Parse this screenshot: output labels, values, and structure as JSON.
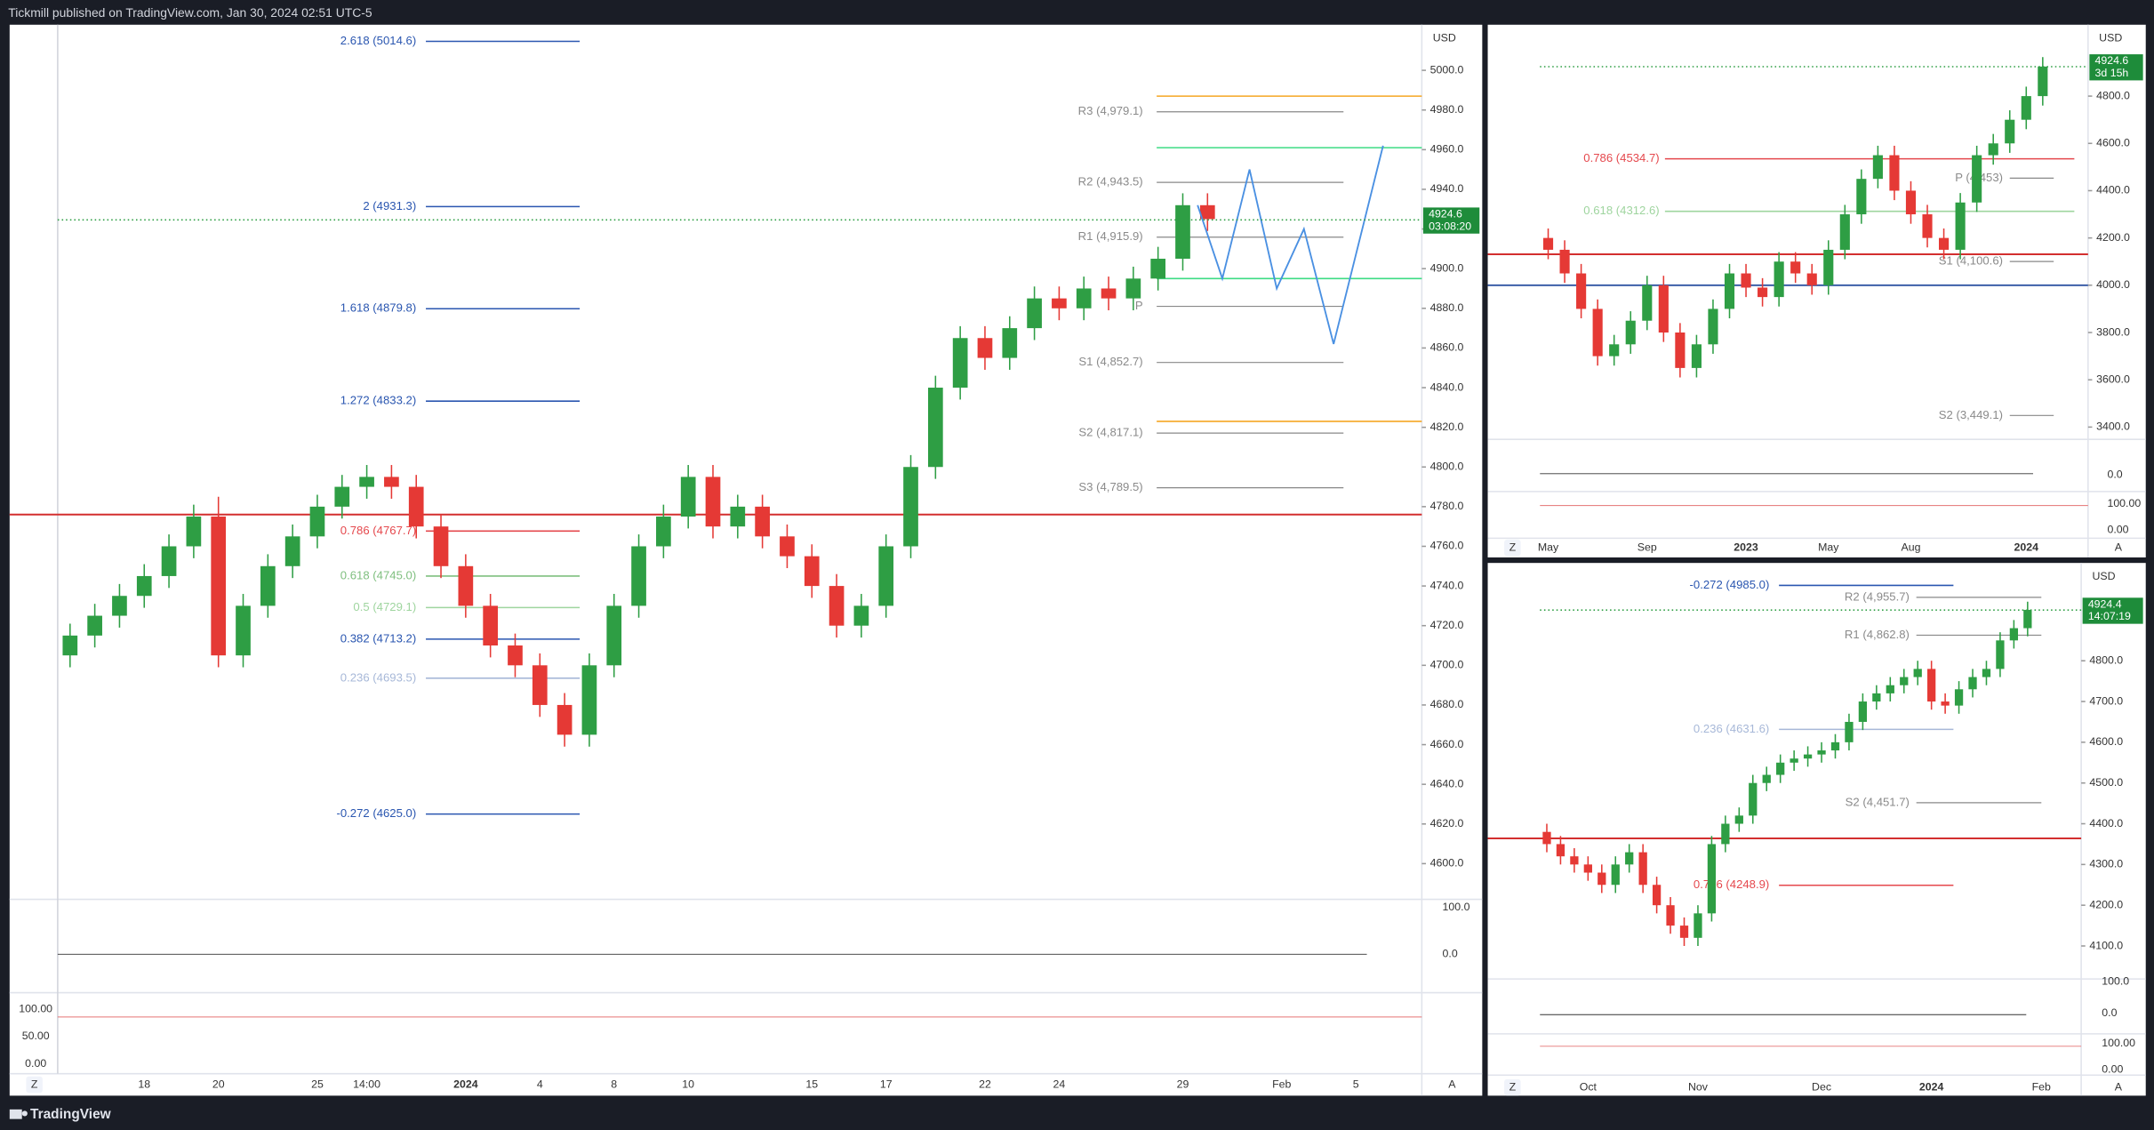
{
  "header": {
    "title": "Tickmill published on TradingView.com, Jan 30, 2024 02:51 UTC-5"
  },
  "footer": {
    "brand": "TradingView"
  },
  "buttons": {
    "left": "Z",
    "right": "A"
  },
  "chart_data": [
    {
      "type": "candlestick",
      "currency": "USD",
      "last_price": 4924.6,
      "countdown": "03:08:20",
      "up_color": "#2e9e44",
      "down_color": "#e53935",
      "categories": [
        null,
        null,
        null,
        "18",
        null,
        null,
        "20",
        null,
        null,
        null,
        "25",
        null,
        "14:00",
        null,
        null,
        null,
        "2024",
        null,
        null,
        "4",
        null,
        null,
        "8",
        null,
        null,
        "10",
        null,
        null,
        null,
        null,
        "15",
        null,
        null,
        "17",
        null,
        null,
        null,
        "22",
        null,
        null,
        "24",
        null,
        null,
        null,
        null,
        "29",
        null,
        null,
        null,
        "Feb",
        null,
        null,
        "5",
        null,
        null
      ],
      "open": [
        4705,
        4715,
        4725,
        4735,
        4745,
        4760,
        4775,
        4705,
        4730,
        4750,
        4765,
        4780,
        4790,
        4795,
        4790,
        4770,
        4750,
        4730,
        4710,
        4700,
        4680,
        4665,
        4700,
        4730,
        4760,
        4775,
        4795,
        4770,
        4780,
        4765,
        4755,
        4740,
        4720,
        4730,
        4760,
        4800,
        4840,
        4865,
        4855,
        4870,
        4885,
        4880,
        4890,
        4885,
        4895,
        4905,
        4932,
        null,
        null,
        null,
        null,
        null,
        null,
        null,
        null
      ],
      "high": [
        4721,
        4731,
        4741,
        4751,
        4766,
        4781,
        4785,
        4736,
        4756,
        4771,
        4786,
        4796,
        4801,
        4801,
        4796,
        4776,
        4756,
        4736,
        4716,
        4706,
        4686,
        4706,
        4736,
        4766,
        4781,
        4801,
        4801,
        4786,
        4786,
        4771,
        4761,
        4746,
        4736,
        4766,
        4806,
        4846,
        4871,
        4871,
        4876,
        4891,
        4891,
        4896,
        4896,
        4901,
        4911,
        4938,
        4938,
        null,
        null,
        null,
        null,
        null,
        null,
        null,
        null
      ],
      "low": [
        4699,
        4709,
        4719,
        4729,
        4739,
        4754,
        4699,
        4699,
        4724,
        4744,
        4759,
        4774,
        4784,
        4784,
        4764,
        4744,
        4724,
        4704,
        4694,
        4674,
        4659,
        4659,
        4694,
        4724,
        4754,
        4769,
        4764,
        4764,
        4759,
        4749,
        4734,
        4714,
        4714,
        4724,
        4754,
        4794,
        4834,
        4849,
        4849,
        4864,
        4874,
        4874,
        4879,
        4879,
        4889,
        4899,
        4919,
        null,
        null,
        null,
        null,
        null,
        null,
        null,
        null
      ],
      "close": [
        4715,
        4725,
        4735,
        4745,
        4760,
        4775,
        4705,
        4730,
        4750,
        4765,
        4780,
        4790,
        4795,
        4790,
        4770,
        4750,
        4730,
        4710,
        4700,
        4680,
        4665,
        4700,
        4730,
        4760,
        4775,
        4795,
        4770,
        4780,
        4765,
        4755,
        4740,
        4720,
        4730,
        4760,
        4800,
        4840,
        4865,
        4855,
        4870,
        4885,
        4880,
        4890,
        4885,
        4895,
        4905,
        4932,
        4925,
        null,
        null,
        null,
        null,
        null,
        null,
        null,
        null
      ],
      "ylim": [
        4582,
        5023
      ],
      "yticks": [
        {
          "value": 4600,
          "label": "4600.0"
        },
        {
          "value": 4620,
          "label": "4620.0"
        },
        {
          "value": 4640,
          "label": "4640.0"
        },
        {
          "value": 4660,
          "label": "4660.0"
        },
        {
          "value": 4680,
          "label": "4680.0"
        },
        {
          "value": 4700,
          "label": "4700.0"
        },
        {
          "value": 4720,
          "label": "4720.0"
        },
        {
          "value": 4740,
          "label": "4740.0"
        },
        {
          "value": 4760,
          "label": "4760.0"
        },
        {
          "value": 4780,
          "label": "4780.0"
        },
        {
          "value": 4800,
          "label": "4800.0"
        },
        {
          "value": 4820,
          "label": "4820.0"
        },
        {
          "value": 4840,
          "label": "4840.0"
        },
        {
          "value": 4860,
          "label": "4860.0"
        },
        {
          "value": 4880,
          "label": "4880.0"
        },
        {
          "value": 4900,
          "label": "4900.0"
        },
        {
          "value": 4920,
          "label": "4920.0"
        },
        {
          "value": 4940,
          "label": "4940.0"
        },
        {
          "value": 4960,
          "label": "4960.0"
        },
        {
          "value": 4980,
          "label": "4980.0"
        },
        {
          "value": 5000,
          "label": "5000.0"
        }
      ],
      "fib_levels": [
        {
          "label": "2.618 (5014.6)",
          "value": 5014.6,
          "color": "#2a56b0"
        },
        {
          "label": "2 (4931.3)",
          "value": 4931.3,
          "color": "#2a56b0"
        },
        {
          "label": "1.618 (4879.8)",
          "value": 4879.8,
          "color": "#2a56b0"
        },
        {
          "label": "1.272 (4833.2)",
          "value": 4833.2,
          "color": "#2a56b0"
        },
        {
          "label": "0.786 (4767.7)",
          "value": 4767.7,
          "color": "#e5484d"
        },
        {
          "label": "0.618 (4745.0)",
          "value": 4745.0,
          "color": "#7fbf7f"
        },
        {
          "label": "0.5 (4729.1)",
          "value": 4729.1,
          "color": "#9fd59f"
        },
        {
          "label": "0.382 (4713.2)",
          "value": 4713.2,
          "color": "#2a56b0"
        },
        {
          "label": "0.236 (4693.5)",
          "value": 4693.5,
          "color": "#a7b8d8"
        },
        {
          "label": "-0.272 (4625.0)",
          "value": 4625.0,
          "color": "#2a56b0"
        }
      ],
      "pivots": [
        {
          "label": "R3 (4,979.1)",
          "value": 4979.1
        },
        {
          "label": "R2 (4,943.5)",
          "value": 4943.5
        },
        {
          "label": "R1 (4,915.9)",
          "value": 4915.9
        },
        {
          "label": "P",
          "value": 4881
        },
        {
          "label": "S1 (4,852.7)",
          "value": 4852.7
        },
        {
          "label": "S2 (4,817.1)",
          "value": 4817.1
        },
        {
          "label": "S3 (4,789.5)",
          "value": 4789.5
        }
      ],
      "levels": [
        {
          "value": 4776,
          "color": "#d32f2f",
          "span": "full"
        },
        {
          "value": 4987,
          "color": "#f5a623",
          "span": "right"
        },
        {
          "value": 4823,
          "color": "#f5a623",
          "span": "right"
        },
        {
          "value": 4961,
          "color": "#3ddc84",
          "span": "right"
        },
        {
          "value": 4895,
          "color": "#3ddc84",
          "span": "right"
        }
      ],
      "projection": {
        "color": "#4a90e2",
        "x": [
          45.6,
          46.6,
          47.7,
          48.8,
          49.9,
          51.1,
          53.1
        ],
        "values": [
          4932,
          4895,
          4950,
          4890,
          4920,
          4862,
          4962
        ]
      },
      "indicator_labels": [
        "100.0",
        "0.0"
      ],
      "oscillator_labels": [
        "100.00",
        "50.00",
        "0.00"
      ]
    },
    {
      "type": "candlestick",
      "currency": "USD",
      "last_price": 4924.6,
      "countdown": "3d 15h",
      "up_color": "#2e9e44",
      "down_color": "#e53935",
      "categories": [
        "May",
        null,
        null,
        null,
        null,
        null,
        "Sep",
        null,
        null,
        null,
        null,
        null,
        "2023",
        null,
        null,
        null,
        null,
        "May",
        null,
        null,
        null,
        null,
        "Aug",
        null,
        null,
        null,
        null,
        null,
        null,
        "2024",
        null,
        null,
        null
      ],
      "open": [
        4200,
        4150,
        4050,
        3900,
        3700,
        3750,
        3850,
        4000,
        3800,
        3650,
        3750,
        3900,
        4050,
        3990,
        3950,
        4100,
        4050,
        4000,
        4150,
        4300,
        4450,
        4550,
        4400,
        4300,
        4200,
        4150,
        4350,
        4550,
        4600,
        4700,
        4800,
        null,
        null
      ],
      "high": [
        4240,
        4190,
        4090,
        3940,
        3790,
        3890,
        4040,
        4040,
        3840,
        3790,
        3940,
        4090,
        4090,
        4030,
        4140,
        4140,
        4090,
        4190,
        4340,
        4490,
        4590,
        4590,
        4440,
        4340,
        4240,
        4390,
        4590,
        4640,
        4740,
        4840,
        4965,
        null,
        null
      ],
      "low": [
        4110,
        4010,
        3860,
        3660,
        3660,
        3710,
        3810,
        3760,
        3610,
        3610,
        3710,
        3860,
        3950,
        3910,
        3910,
        4010,
        3960,
        3960,
        4110,
        4260,
        4410,
        4360,
        4260,
        4160,
        4110,
        4110,
        4310,
        4510,
        4560,
        4660,
        4760,
        null,
        null
      ],
      "close": [
        4150,
        4050,
        3900,
        3700,
        3750,
        3850,
        4000,
        3800,
        3650,
        3750,
        3900,
        4050,
        3990,
        3950,
        4100,
        4050,
        4000,
        4150,
        4300,
        4450,
        4550,
        4400,
        4300,
        4200,
        4150,
        4350,
        4550,
        4600,
        4700,
        4800,
        4925,
        null,
        null
      ],
      "ylim": [
        3348,
        5102
      ],
      "yticks": [
        {
          "value": 3400,
          "label": "3400.0"
        },
        {
          "value": 3600,
          "label": "3600.0"
        },
        {
          "value": 3800,
          "label": "3800.0"
        },
        {
          "value": 4000,
          "label": "4000.0"
        },
        {
          "value": 4200,
          "label": "4200.0"
        },
        {
          "value": 4400,
          "label": "4400.0"
        },
        {
          "value": 4600,
          "label": "4600.0"
        },
        {
          "value": 4800,
          "label": "4800.0"
        }
      ],
      "fib_levels": [
        {
          "label": "0.786 (4534.7)",
          "value": 4534.7,
          "color": "#e5484d"
        },
        {
          "label": "0.618 (4312.6)",
          "value": 4312.6,
          "color": "#9fd59f"
        }
      ],
      "pivots": [
        {
          "label": "P (4,453)",
          "value": 4453
        },
        {
          "label": "S1 (4,100.6)",
          "value": 4100.6
        },
        {
          "label": "S2 (3,449.1)",
          "value": 3449.1
        }
      ],
      "levels": [
        {
          "value": 4131,
          "color": "#d32f2f",
          "span": "full"
        },
        {
          "value": 4000,
          "color": "#3d5fa8",
          "span": "full"
        }
      ],
      "indicator_labels": [
        "0.0"
      ],
      "oscillator_labels": [
        "100.00",
        "0.00"
      ]
    },
    {
      "type": "candlestick",
      "currency": "USD",
      "last_price": 4924.4,
      "countdown": "14:07:19",
      "up_color": "#2e9e44",
      "down_color": "#e53935",
      "categories": [
        null,
        null,
        null,
        "Oct",
        null,
        null,
        null,
        null,
        null,
        null,
        null,
        "Nov",
        null,
        null,
        null,
        null,
        null,
        null,
        null,
        null,
        "Dec",
        null,
        null,
        null,
        null,
        null,
        null,
        null,
        "2024",
        null,
        null,
        null,
        null,
        null,
        null,
        null,
        "Feb",
        null,
        null
      ],
      "open": [
        4380,
        4350,
        4320,
        4300,
        4280,
        4250,
        4300,
        4330,
        4250,
        4200,
        4150,
        4120,
        4180,
        4350,
        4400,
        4420,
        4500,
        4520,
        4550,
        4560,
        4570,
        4580,
        4600,
        4650,
        4700,
        4720,
        4740,
        4760,
        4780,
        4700,
        4690,
        4730,
        4760,
        4780,
        4850,
        4880,
        null,
        null,
        null
      ],
      "high": [
        4400,
        4370,
        4340,
        4320,
        4300,
        4320,
        4350,
        4350,
        4270,
        4220,
        4170,
        4200,
        4370,
        4420,
        4440,
        4520,
        4540,
        4570,
        4580,
        4590,
        4600,
        4620,
        4670,
        4720,
        4740,
        4760,
        4780,
        4800,
        4800,
        4720,
        4750,
        4780,
        4800,
        4870,
        4900,
        4945,
        null,
        null,
        null
      ],
      "low": [
        4330,
        4300,
        4280,
        4260,
        4230,
        4230,
        4280,
        4230,
        4180,
        4130,
        4100,
        4100,
        4160,
        4330,
        4380,
        4400,
        4480,
        4500,
        4530,
        4540,
        4550,
        4560,
        4580,
        4630,
        4680,
        4700,
        4720,
        4740,
        4680,
        4670,
        4670,
        4710,
        4740,
        4760,
        4830,
        4860,
        null,
        null,
        null
      ],
      "close": [
        4350,
        4320,
        4300,
        4280,
        4250,
        4300,
        4330,
        4250,
        4200,
        4150,
        4120,
        4180,
        4350,
        4400,
        4420,
        4500,
        4520,
        4550,
        4560,
        4570,
        4580,
        4600,
        4650,
        4700,
        4720,
        4740,
        4760,
        4780,
        4700,
        4690,
        4730,
        4760,
        4780,
        4850,
        4880,
        4925,
        null,
        null,
        null
      ],
      "ylim": [
        4019,
        5030
      ],
      "yticks": [
        {
          "value": 4100,
          "label": "4100.0"
        },
        {
          "value": 4200,
          "label": "4200.0"
        },
        {
          "value": 4300,
          "label": "4300.0"
        },
        {
          "value": 4400,
          "label": "4400.0"
        },
        {
          "value": 4500,
          "label": "4500.0"
        },
        {
          "value": 4600,
          "label": "4600.0"
        },
        {
          "value": 4700,
          "label": "4700.0"
        },
        {
          "value": 4800,
          "label": "4800.0"
        }
      ],
      "fib_levels": [
        {
          "label": "-0.272 (4985.0)",
          "value": 4985.0,
          "color": "#2a56b0"
        },
        {
          "label": "0.236 (4631.6)",
          "value": 4631.6,
          "color": "#a7b8d8"
        },
        {
          "label": "0.786 (4248.9)",
          "value": 4248.9,
          "color": "#e5484d"
        }
      ],
      "pivots": [
        {
          "label": "R2 (4,955.7)",
          "value": 4955.7
        },
        {
          "label": "R1 (4,862.8)",
          "value": 4862.8
        },
        {
          "label": "S2 (4,451.7)",
          "value": 4451.7
        }
      ],
      "levels": [
        {
          "value": 4364,
          "color": "#d32f2f",
          "span": "full"
        }
      ],
      "indicator_labels": [
        "100.0",
        "0.0"
      ],
      "oscillator_labels": [
        "100.00",
        "0.00"
      ]
    }
  ]
}
